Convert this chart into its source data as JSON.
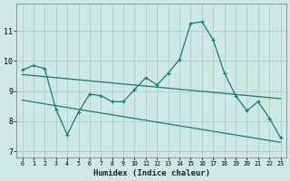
{
  "title": "",
  "xlabel": "Humidex (Indice chaleur)",
  "xlim": [
    -0.5,
    23.5
  ],
  "ylim": [
    6.8,
    11.9
  ],
  "yticks": [
    7,
    8,
    9,
    10,
    11
  ],
  "xticks": [
    0,
    1,
    2,
    3,
    4,
    5,
    6,
    7,
    8,
    9,
    10,
    11,
    12,
    13,
    14,
    15,
    16,
    17,
    18,
    19,
    20,
    21,
    22,
    23
  ],
  "bg_color": "#cde8e5",
  "grid_color": "#aacfcc",
  "line_color": "#1a7a6e",
  "line1_x": [
    0,
    1,
    2,
    3,
    4,
    5,
    6,
    7,
    8,
    9,
    10,
    11,
    12,
    13,
    14,
    15,
    16,
    17,
    18,
    19,
    20,
    21,
    22,
    23
  ],
  "line1_y": [
    9.7,
    9.85,
    9.75,
    8.4,
    7.55,
    8.3,
    8.9,
    8.85,
    8.65,
    8.65,
    9.05,
    9.45,
    9.2,
    9.6,
    10.05,
    11.25,
    11.3,
    10.7,
    9.6,
    8.85,
    8.35,
    8.65,
    8.1,
    7.45
  ],
  "line2_x": [
    0,
    23
  ],
  "line2_y": [
    9.55,
    8.75
  ],
  "line3_x": [
    0,
    23
  ],
  "line3_y": [
    8.7,
    7.3
  ]
}
